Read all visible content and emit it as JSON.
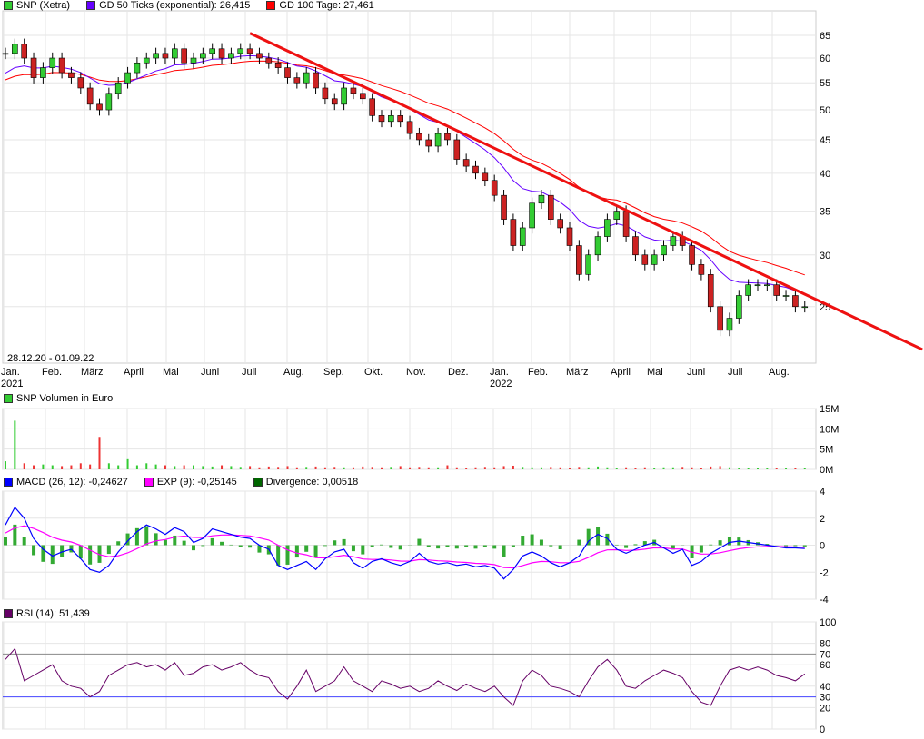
{
  "legend_price": [
    {
      "label": "SNP (Xetra)",
      "color": "#33cc33"
    },
    {
      "label": "GD 50 Ticks (exponential): 26,415",
      "color": "#6600ff"
    },
    {
      "label": "GD 100 Tage: 27,461",
      "color": "#ff0000"
    }
  ],
  "legend_volume": [
    {
      "label": "SNP Volumen in Euro",
      "color": "#33cc33"
    }
  ],
  "legend_macd": [
    {
      "label": "MACD (26, 12): -0,24627",
      "color": "#0000ff"
    },
    {
      "label": "EXP (9): -0,25145",
      "color": "#ff00ff"
    },
    {
      "label": "Divergence: 0,00518",
      "color": "#006600"
    }
  ],
  "legend_rsi": [
    {
      "label": "RSI (14): 51,439",
      "color": "#660066"
    }
  ],
  "date_range": "28.12.20 - 01.09.22",
  "chart_data": [
    {
      "type": "candlestick",
      "scale": "log",
      "ylim": [
        20.5,
        74
      ],
      "yticks": [
        25,
        30,
        35,
        40,
        45,
        50,
        55,
        60,
        65
      ],
      "xticks": [
        [
          "Jan.",
          "2021"
        ],
        [
          "Feb.",
          ""
        ],
        [
          "März",
          ""
        ],
        [
          "April",
          ""
        ],
        [
          "Mai",
          ""
        ],
        [
          "Juni",
          ""
        ],
        [
          "Juli",
          ""
        ],
        [
          "Aug.",
          ""
        ],
        [
          "Sep.",
          ""
        ],
        [
          "Okt.",
          ""
        ],
        [
          "Nov.",
          ""
        ],
        [
          "Dez.",
          ""
        ],
        [
          "Jan.",
          "2022"
        ],
        [
          "Feb.",
          ""
        ],
        [
          "März",
          ""
        ],
        [
          "April",
          ""
        ],
        [
          "Mai",
          ""
        ],
        [
          "Juni",
          ""
        ],
        [
          "Juli",
          ""
        ],
        [
          "Aug.",
          ""
        ]
      ],
      "weekly_close": [
        61,
        63,
        60,
        56,
        58,
        60,
        57,
        56,
        54,
        51,
        50,
        53,
        55,
        57,
        59,
        60,
        61,
        60,
        62,
        59,
        60,
        61,
        62,
        60,
        61,
        62,
        61,
        60,
        59,
        58,
        56,
        55,
        57,
        54,
        52,
        51,
        54,
        53,
        52,
        49,
        48,
        49,
        48,
        46,
        45,
        44,
        46,
        45,
        42,
        41,
        40,
        39,
        37,
        34,
        31,
        33,
        36,
        37,
        34,
        33,
        31,
        28,
        30,
        32,
        34,
        35,
        32,
        30,
        29,
        30,
        31,
        32,
        31,
        29,
        28,
        25,
        23,
        24,
        26,
        27,
        27,
        27,
        26,
        26,
        25,
        25
      ],
      "series": [
        {
          "name": "GD 50 Ticks (exponential)",
          "last": 26.415,
          "color": "#6600ff"
        },
        {
          "name": "GD 100 Tage",
          "last": 27.461,
          "color": "#ff0000"
        }
      ],
      "trendline": {
        "from": [
          26,
          65.5
        ],
        "to": [
          97.5,
          21.5
        ],
        "color": "#ee1111"
      }
    },
    {
      "type": "bar",
      "name": "SNP Volumen in Euro",
      "ylim": [
        0,
        15
      ],
      "yticks": [
        "0M",
        "5M",
        "10M",
        "15M"
      ],
      "values_m": [
        2,
        12,
        1.5,
        1,
        1.2,
        1,
        0.8,
        1,
        1.5,
        1.2,
        8,
        1.5,
        1,
        2.5,
        1,
        1.5,
        1.2,
        1,
        0.8,
        1,
        1,
        0.8,
        0.7,
        1,
        0.8,
        0.6,
        0.8,
        0.5,
        0.7,
        0.6,
        0.8,
        0.5,
        0.6,
        0.7,
        0.5,
        0.6,
        0.5,
        0.5,
        0.7,
        0.6,
        0.5,
        0.6,
        0.8,
        0.5,
        0.6,
        0.5,
        0.5,
        1,
        0.5,
        0.4,
        0.5,
        0.6,
        0.5,
        0.8,
        0.9,
        0.6,
        0.5,
        0.5,
        0.6,
        0.5,
        0.4,
        0.6,
        0.5,
        0.7,
        0.5,
        0.4,
        0.5,
        0.4,
        0.5,
        0.4,
        0.5,
        0.5,
        0.6,
        0.5,
        0.4,
        0.7,
        0.8,
        0.5,
        0.4,
        0.4,
        0.3,
        0.4,
        0.3,
        0.3,
        0.3,
        0.3
      ]
    },
    {
      "type": "line",
      "name": "MACD",
      "ylim": [
        -4,
        4
      ],
      "yticks": [
        -4,
        -2,
        0,
        2,
        4
      ],
      "macd": [
        1.5,
        2.8,
        2,
        0.5,
        -0.3,
        -0.8,
        -0.5,
        -0.3,
        -1,
        -1.8,
        -2,
        -1.5,
        -0.5,
        0.3,
        1,
        1.5,
        1.2,
        0.8,
        1.3,
        1,
        0.2,
        0.5,
        1.2,
        1,
        0.8,
        0.6,
        0.5,
        0,
        -0.3,
        -1.5,
        -1.8,
        -1.5,
        -1.2,
        -1.8,
        -1,
        -0.5,
        -0.3,
        -1.3,
        -1.7,
        -1.2,
        -1,
        -1.3,
        -1.5,
        -1.2,
        -0.6,
        -1.2,
        -1.4,
        -1.3,
        -1.5,
        -1.4,
        -1.6,
        -1.5,
        -1.7,
        -2.5,
        -1.8,
        -0.8,
        -0.5,
        -0.8,
        -1.3,
        -1.6,
        -1.3,
        -0.8,
        0.3,
        0.8,
        0.5,
        -0.3,
        -0.6,
        -0.3,
        0,
        0.2,
        -0.2,
        -0.6,
        -0.3,
        -1.5,
        -1.2,
        -0.6,
        -0.2,
        0.2,
        0.3,
        0.2,
        0.1,
        0,
        -0.1,
        -0.2,
        -0.2,
        -0.25
      ],
      "last_macd": -0.24627,
      "last_exp": -0.25145,
      "last_divergence": 0.00518
    },
    {
      "type": "line",
      "name": "RSI (14)",
      "ylim": [
        0,
        100
      ],
      "yticks": [
        0,
        20,
        40,
        60,
        80,
        100
      ],
      "levels": [
        30,
        70
      ],
      "rsi": [
        65,
        75,
        45,
        50,
        55,
        60,
        45,
        40,
        38,
        30,
        35,
        50,
        55,
        60,
        62,
        58,
        60,
        55,
        62,
        50,
        52,
        58,
        60,
        55,
        58,
        62,
        55,
        50,
        48,
        35,
        28,
        40,
        55,
        35,
        40,
        45,
        58,
        45,
        40,
        35,
        45,
        42,
        38,
        40,
        35,
        38,
        45,
        40,
        36,
        42,
        38,
        35,
        40,
        30,
        22,
        45,
        55,
        50,
        40,
        38,
        35,
        30,
        45,
        58,
        65,
        55,
        40,
        38,
        45,
        50,
        55,
        52,
        48,
        35,
        25,
        22,
        40,
        55,
        58,
        55,
        58,
        55,
        50,
        48,
        45,
        51.4
      ]
    }
  ]
}
